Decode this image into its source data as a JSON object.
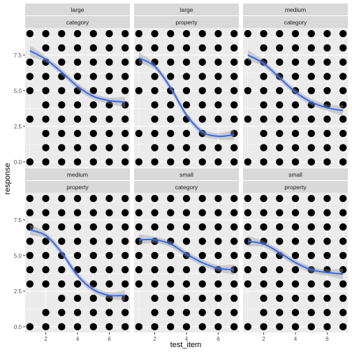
{
  "chart_data": {
    "type": "scatter",
    "xlabel": "test_item",
    "ylabel": "response",
    "xlim": [
      0.7,
      7.3
    ],
    "ylim": [
      -0.4,
      9.4
    ],
    "x_ticks": [
      2,
      4,
      6
    ],
    "y_ticks": [
      0.0,
      2.5,
      5.0,
      7.5
    ],
    "y_tick_labels": [
      "0.0",
      "2.5",
      "5.0",
      "7.5"
    ],
    "grid": true,
    "smoother": "loess",
    "points_x": [
      1,
      2,
      3,
      4,
      5,
      6,
      7
    ],
    "points_y": [
      0,
      1,
      2,
      3,
      4,
      5,
      6,
      7,
      8,
      9
    ],
    "facets": [
      {
        "strip": [
          "large",
          "category"
        ],
        "missing_points": [
          [
            1,
            1
          ],
          [
            1,
            2
          ],
          [
            1,
            4
          ],
          [
            1,
            8
          ]
        ],
        "smooth": [
          [
            1,
            7.8
          ],
          [
            2,
            7.2
          ],
          [
            3,
            6.3
          ],
          [
            4,
            5.3
          ],
          [
            5,
            4.6
          ],
          [
            6,
            4.3
          ],
          [
            7,
            4.2
          ]
        ]
      },
      {
        "strip": [
          "large",
          "property"
        ],
        "missing_points": [
          [
            1,
            1
          ],
          [
            1,
            3
          ],
          [
            1,
            4
          ],
          [
            1,
            6
          ],
          [
            6,
            2
          ]
        ],
        "smooth": [
          [
            1,
            7.3
          ],
          [
            2,
            6.7
          ],
          [
            3,
            5.2
          ],
          [
            4,
            3.3
          ],
          [
            5,
            2.1
          ],
          [
            6,
            1.8
          ],
          [
            7,
            1.9
          ]
        ]
      },
      {
        "strip": [
          "medium",
          "category"
        ],
        "missing_points": [
          [
            1,
            1
          ],
          [
            1,
            2
          ],
          [
            1,
            4
          ],
          [
            1,
            6
          ],
          [
            1,
            8
          ]
        ],
        "smooth": [
          [
            1,
            7.5
          ],
          [
            2,
            6.9
          ],
          [
            3,
            5.9
          ],
          [
            4,
            4.9
          ],
          [
            5,
            4.2
          ],
          [
            6,
            3.8
          ],
          [
            7,
            3.6
          ]
        ]
      },
      {
        "strip": [
          "medium",
          "property"
        ],
        "missing_points": [
          [
            1,
            1
          ],
          [
            1,
            2
          ],
          [
            2,
            2
          ]
        ],
        "smooth": [
          [
            1,
            6.8
          ],
          [
            2,
            6.4
          ],
          [
            3,
            5.2
          ],
          [
            4,
            3.6
          ],
          [
            5,
            2.6
          ],
          [
            6,
            2.2
          ],
          [
            7,
            2.2
          ]
        ]
      },
      {
        "strip": [
          "small",
          "category"
        ],
        "missing_points": [
          [
            1,
            1
          ],
          [
            1,
            2
          ]
        ],
        "smooth": [
          [
            1,
            6.1
          ],
          [
            2,
            6.1
          ],
          [
            3,
            5.8
          ],
          [
            4,
            5.1
          ],
          [
            5,
            4.5
          ],
          [
            6,
            4.1
          ],
          [
            7,
            4.0
          ]
        ]
      },
      {
        "strip": [
          "small",
          "property"
        ],
        "missing_points": [
          [
            1,
            1
          ],
          [
            1,
            2
          ]
        ],
        "smooth": [
          [
            1,
            6.0
          ],
          [
            2,
            5.8
          ],
          [
            3,
            5.2
          ],
          [
            4,
            4.5
          ],
          [
            5,
            4.0
          ],
          [
            6,
            3.8
          ],
          [
            7,
            3.7
          ]
        ]
      }
    ]
  }
}
